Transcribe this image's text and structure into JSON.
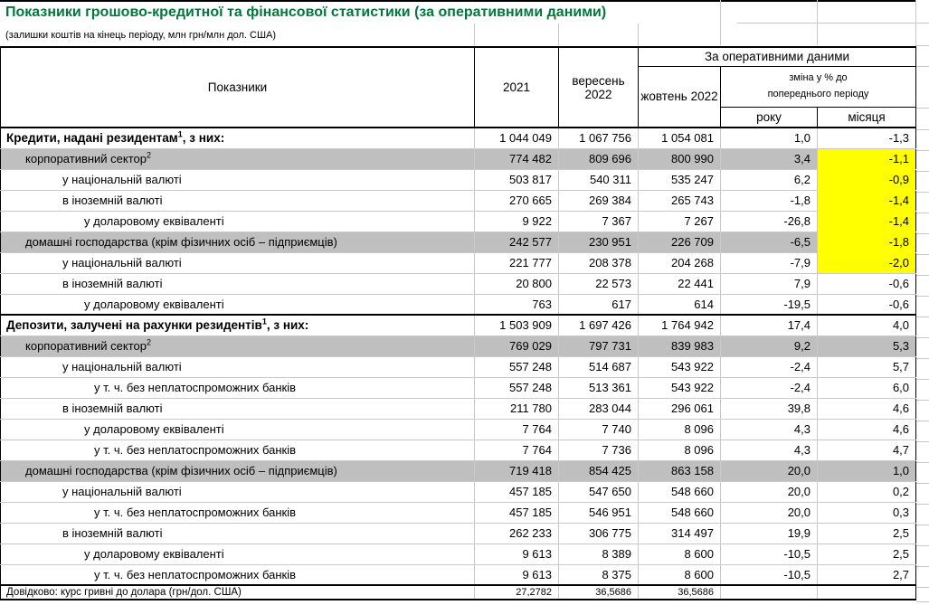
{
  "title": "Показники грошово-кредитної та фінансової статистики (за оперативними даними)",
  "subtitle": "(залишки коштів на кінець періоду, млн грн/млн дол. США)",
  "colors": {
    "title_green": "#00783C",
    "row_gray": "#BFBFBF",
    "highlight_yellow": "#FFFF00",
    "gridline_gray": "#C9C9C9",
    "border_black": "#000000"
  },
  "header": {
    "indicators": "Показники",
    "col_2021": "2021",
    "col_september_2022": "вересень 2022",
    "operational_group": "За оперативними даними",
    "col_october_2022": "жовтень 2022",
    "change_line1": "зміна у % до",
    "change_line2": "попереднього періоду",
    "change_year": "року",
    "change_month": "місяця"
  },
  "rows": [
    {
      "label": "Кредити, надані резидентам",
      "sup": "1",
      "label_after": ", з них:",
      "indent": 0,
      "bold": true,
      "fill": "none",
      "values": [
        "1 044 049",
        "1 067 756",
        "1 054 081",
        "1,0",
        "-1,3"
      ]
    },
    {
      "label": "корпоративний сектор",
      "sup": "2",
      "label_after": "",
      "indent": 1,
      "bold": false,
      "fill": "gray",
      "month_fill": "yellow",
      "values": [
        "774 482",
        "809 696",
        "800 990",
        "3,4",
        "-1,1"
      ]
    },
    {
      "label": "у національній валюті",
      "indent": 2,
      "bold": false,
      "fill": "none",
      "month_fill": "yellow",
      "values": [
        "503 817",
        "540 311",
        "535 247",
        "6,2",
        "-0,9"
      ]
    },
    {
      "label": "в іноземній валюті",
      "indent": 2,
      "bold": false,
      "fill": "none",
      "month_fill": "yellow",
      "values": [
        "270 665",
        "269 384",
        "265 743",
        "-1,8",
        "-1,4"
      ]
    },
    {
      "label": "у доларовому еквіваленті",
      "indent": 3,
      "bold": false,
      "fill": "none",
      "month_fill": "yellow",
      "values": [
        "9 922",
        "7 367",
        "7 267",
        "-26,8",
        "-1,4"
      ]
    },
    {
      "label": "домашні господарства (крім фізичних осіб – підприємців)",
      "indent": 1,
      "bold": false,
      "fill": "gray",
      "month_fill": "yellow",
      "values": [
        "242 577",
        "230 951",
        "226 709",
        "-6,5",
        "-1,8"
      ]
    },
    {
      "label": "у національній валюті",
      "indent": 2,
      "bold": false,
      "fill": "none",
      "month_fill": "yellow",
      "month_fill_last": true,
      "values": [
        "221 777",
        "208 378",
        "204 268",
        "-7,9",
        "-2,0"
      ]
    },
    {
      "label": "в іноземній валюті",
      "indent": 2,
      "bold": false,
      "fill": "none",
      "values": [
        "20 800",
        "22 573",
        "22 441",
        "7,9",
        "-0,6"
      ]
    },
    {
      "label": "у доларовому еквіваленті",
      "indent": 3,
      "bold": false,
      "fill": "none",
      "values": [
        "763",
        "617",
        "614",
        "-19,5",
        "-0,6"
      ]
    },
    {
      "label": "Депозити, залучені на рахунки резидентів",
      "sup": "1",
      "label_after": ", з них:",
      "indent": 0,
      "bold": true,
      "fill": "none",
      "section_top": true,
      "values": [
        "1 503 909",
        "1 697 426",
        "1 764 942",
        "17,4",
        "4,0"
      ]
    },
    {
      "label": "корпоративний сектор",
      "sup": "2",
      "label_after": "",
      "indent": 1,
      "bold": false,
      "fill": "gray",
      "values": [
        "769 029",
        "797 731",
        "839 983",
        "9,2",
        "5,3"
      ]
    },
    {
      "label": "у національній валюті",
      "indent": 2,
      "bold": false,
      "fill": "none",
      "values": [
        "557 248",
        "514 687",
        "543 922",
        "-2,4",
        "5,7"
      ]
    },
    {
      "label": "у т. ч. без неплатоспроможних банків",
      "indent": 4,
      "bold": false,
      "fill": "none",
      "values": [
        "557 248",
        "513 361",
        "543 922",
        "-2,4",
        "6,0"
      ]
    },
    {
      "label": "в іноземній валюті",
      "indent": 2,
      "bold": false,
      "fill": "none",
      "values": [
        "211 780",
        "283 044",
        "296 061",
        "39,8",
        "4,6"
      ]
    },
    {
      "label": "у доларовому еквіваленті",
      "indent": 3,
      "bold": false,
      "fill": "none",
      "values": [
        "7 764",
        "7 740",
        "8 096",
        "4,3",
        "4,6"
      ]
    },
    {
      "label": "у т. ч. без неплатоспроможних банків",
      "indent": 4,
      "bold": false,
      "fill": "none",
      "values": [
        "7 764",
        "7 736",
        "8 096",
        "4,3",
        "4,7"
      ]
    },
    {
      "label": "домашні господарства (крім фізичних осіб – підприємців)",
      "indent": 1,
      "bold": false,
      "fill": "gray",
      "values": [
        "719 418",
        "854 425",
        "863 158",
        "20,0",
        "1,0"
      ]
    },
    {
      "label": "у національній валюті",
      "indent": 2,
      "bold": false,
      "fill": "none",
      "values": [
        "457 185",
        "547 650",
        "548 660",
        "20,0",
        "0,2"
      ]
    },
    {
      "label": "у т. ч. без неплатоспроможних банків",
      "indent": 4,
      "bold": false,
      "fill": "none",
      "values": [
        "457 185",
        "546 951",
        "548 660",
        "20,0",
        "0,3"
      ]
    },
    {
      "label": "в іноземній валюті",
      "indent": 2,
      "bold": false,
      "fill": "none",
      "values": [
        "262 233",
        "306 775",
        "314 497",
        "19,9",
        "2,5"
      ]
    },
    {
      "label": "у доларовому еквіваленті",
      "indent": 3,
      "bold": false,
      "fill": "none",
      "values": [
        "9 613",
        "8 389",
        "8 600",
        "-10,5",
        "2,5"
      ]
    },
    {
      "label": "у т. ч. без неплатоспроможних банків",
      "indent": 4,
      "bold": false,
      "fill": "none",
      "values": [
        "9 613",
        "8 375",
        "8 600",
        "-10,5",
        "2,7"
      ]
    },
    {
      "label": "Довідково: курс гривні до долара (грн/дол. США)",
      "indent": 0,
      "bold": false,
      "fill": "none",
      "footer": true,
      "values": [
        "27,2782",
        "36,5686",
        "36,5686",
        "",
        ""
      ]
    }
  ]
}
